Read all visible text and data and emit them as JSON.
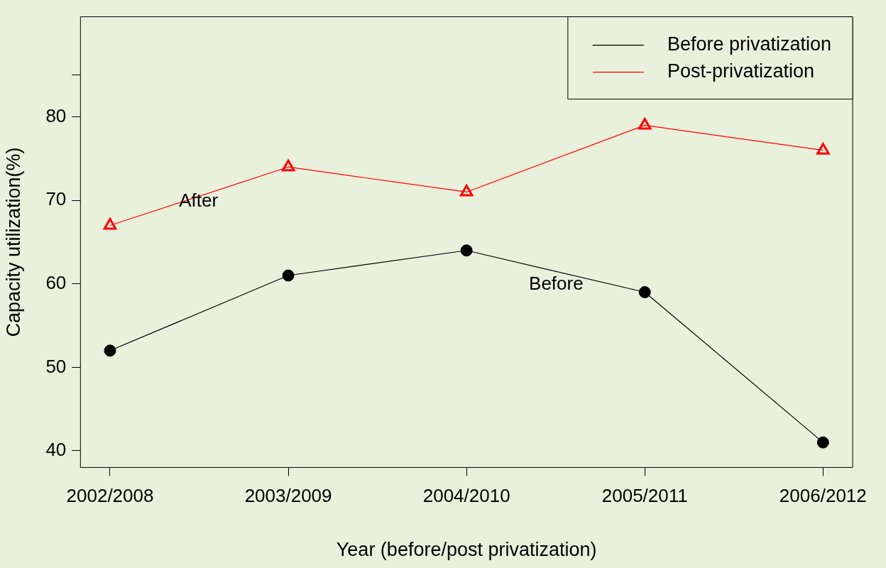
{
  "chart_data": {
    "type": "line",
    "xlabel": "Year (before/post privatization)",
    "ylabel": "Capacity utilization(%)",
    "categories": [
      "2002/2008",
      "2003/2009",
      "2004/2010",
      "2005/2011",
      "2006/2012"
    ],
    "series": [
      {
        "name": "Before privatization",
        "color": "#000000",
        "marker": "circle",
        "values": [
          52,
          61,
          64,
          59,
          41
        ]
      },
      {
        "name": "Post-privatization",
        "color": "#ff0000",
        "marker": "triangle",
        "values": [
          67,
          74,
          71,
          79,
          76
        ]
      }
    ],
    "ylim": [
      38,
      92
    ],
    "yticks": [
      40,
      50,
      60,
      70,
      80,
      {
        "value": 85,
        "label": null
      }
    ],
    "annotations": [
      "After",
      "Before"
    ],
    "legend": "top right",
    "grid": false,
    "line_style": "solid"
  }
}
